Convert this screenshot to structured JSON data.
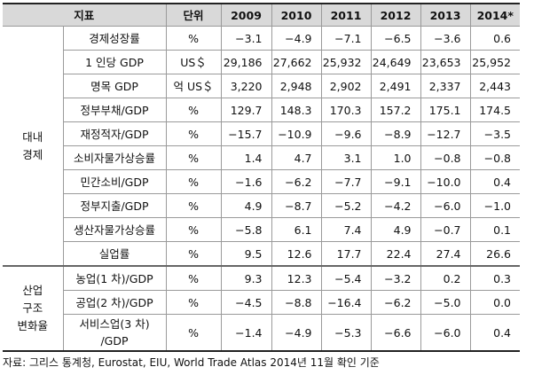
{
  "header": {
    "indicator": "지표",
    "unit": "단위",
    "years": [
      "2009",
      "2010",
      "2011",
      "2012",
      "2013",
      "2014*"
    ]
  },
  "groups": [
    {
      "label_lines": [
        "대내",
        "경제"
      ],
      "rows": [
        {
          "indicator": "경제성장률",
          "unit": "%",
          "values": [
            "−3.1",
            "−4.9",
            "−7.1",
            "−6.5",
            "−3.6",
            "0.6"
          ]
        },
        {
          "indicator": "1 인당 GDP",
          "unit": "US＄",
          "values": [
            "29,186",
            "27,662",
            "25,932",
            "24,649",
            "23,653",
            "25,952"
          ]
        },
        {
          "indicator": "명목   GDP",
          "unit": "억 US＄",
          "values": [
            "3,220",
            "2,948",
            "2,902",
            "2,491",
            "2,337",
            "2,443"
          ]
        },
        {
          "indicator": "정부부채/GDP",
          "unit": "%",
          "values": [
            "129.7",
            "148.3",
            "170.3",
            "157.2",
            "175.1",
            "174.5"
          ]
        },
        {
          "indicator": "재정적자/GDP",
          "unit": "%",
          "values": [
            "−15.7",
            "−10.9",
            "−9.6",
            "−8.9",
            "−12.7",
            "−3.5"
          ]
        },
        {
          "indicator": "소비자물가상승률",
          "unit": "%",
          "values": [
            "1.4",
            "4.7",
            "3.1",
            "1.0",
            "−0.8",
            "−0.8"
          ]
        },
        {
          "indicator": "민간소비/GDP",
          "unit": "%",
          "values": [
            "−1.6",
            "−6.2",
            "−7.7",
            "−9.1",
            "−10.0",
            "0.4"
          ]
        },
        {
          "indicator": "정부지출/GDP",
          "unit": "%",
          "values": [
            "4.9",
            "−8.7",
            "−5.2",
            "−4.2",
            "−6.0",
            "−1.0"
          ]
        },
        {
          "indicator": "생산자물가상승률",
          "unit": "%",
          "values": [
            "−5.8",
            "6.1",
            "7.4",
            "4.9",
            "−0.7",
            "0.1"
          ]
        },
        {
          "indicator": "실업률",
          "unit": "%",
          "values": [
            "9.5",
            "12.6",
            "17.7",
            "22.4",
            "27.4",
            "26.6"
          ]
        }
      ]
    },
    {
      "label_lines": [
        "산업",
        "구조",
        "변화율"
      ],
      "rows": [
        {
          "indicator": "농업(1 차)/GDP",
          "unit": "%",
          "values": [
            "9.3",
            "12.3",
            "−5.4",
            "−3.2",
            "0.2",
            "0.3"
          ]
        },
        {
          "indicator": "공업(2 차)/GDP",
          "unit": "%",
          "values": [
            "−4.5",
            "−8.8",
            "−16.4",
            "−6.2",
            "−5.0",
            "0.0"
          ]
        },
        {
          "indicator": "서비스업(3 차)/GDP",
          "indicator_lines": [
            "서비스업(3 차)",
            "/GDP"
          ],
          "unit": "%",
          "values": [
            "−1.4",
            "−4.9",
            "−5.3",
            "−6.6",
            "−6.0",
            "0.4"
          ]
        }
      ]
    }
  ],
  "source": "자료: 그리스 통계청, Eurostat, EIU, World Trade Atlas 2014년 11월 확인 기준"
}
